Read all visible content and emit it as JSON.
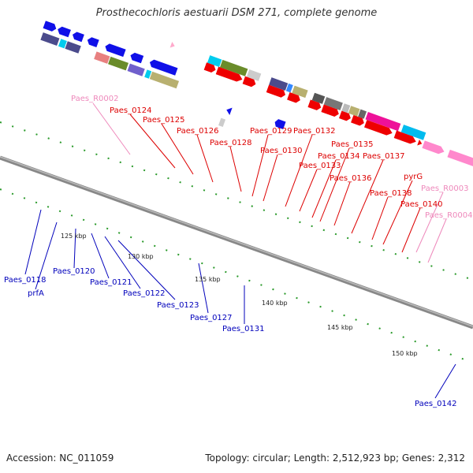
{
  "title": "Prosthecochloris aestuarii DSM 271, complete genome",
  "footer": {
    "accession": "Accession: NC_011059",
    "summary": "Topology: circular; Length: 2,512,923 bp; Genes: 2,312"
  },
  "colors": {
    "forward_label": "#dd0000",
    "reverse_label": "#0000bb",
    "rna_label": "#ee88bb",
    "backbone": "#888888"
  },
  "scale_ticks": [
    "125 kbp",
    "130 kbp",
    "135 kbp",
    "140 kbp",
    "145 kbp",
    "150 kbp"
  ],
  "gene_labels_top": [
    "Paes_R0002",
    "Paes_0124",
    "Paes_0125",
    "Paes_0126",
    "Paes_0128",
    "Paes_0129",
    "Paes_0130",
    "Paes_0132",
    "Paes_0133",
    "Paes_0134",
    "Paes_0135",
    "Paes_0136",
    "Paes_0137",
    "Paes_0138",
    "pyrG",
    "Paes_0140",
    "Paes_R0003",
    "Paes_R0004"
  ],
  "gene_labels_bottom": [
    "Paes_0118",
    "prfA",
    "Paes_0120",
    "Paes_0121",
    "Paes_0122",
    "Paes_0123",
    "Paes_0127",
    "Paes_0131",
    "Paes_0142"
  ]
}
